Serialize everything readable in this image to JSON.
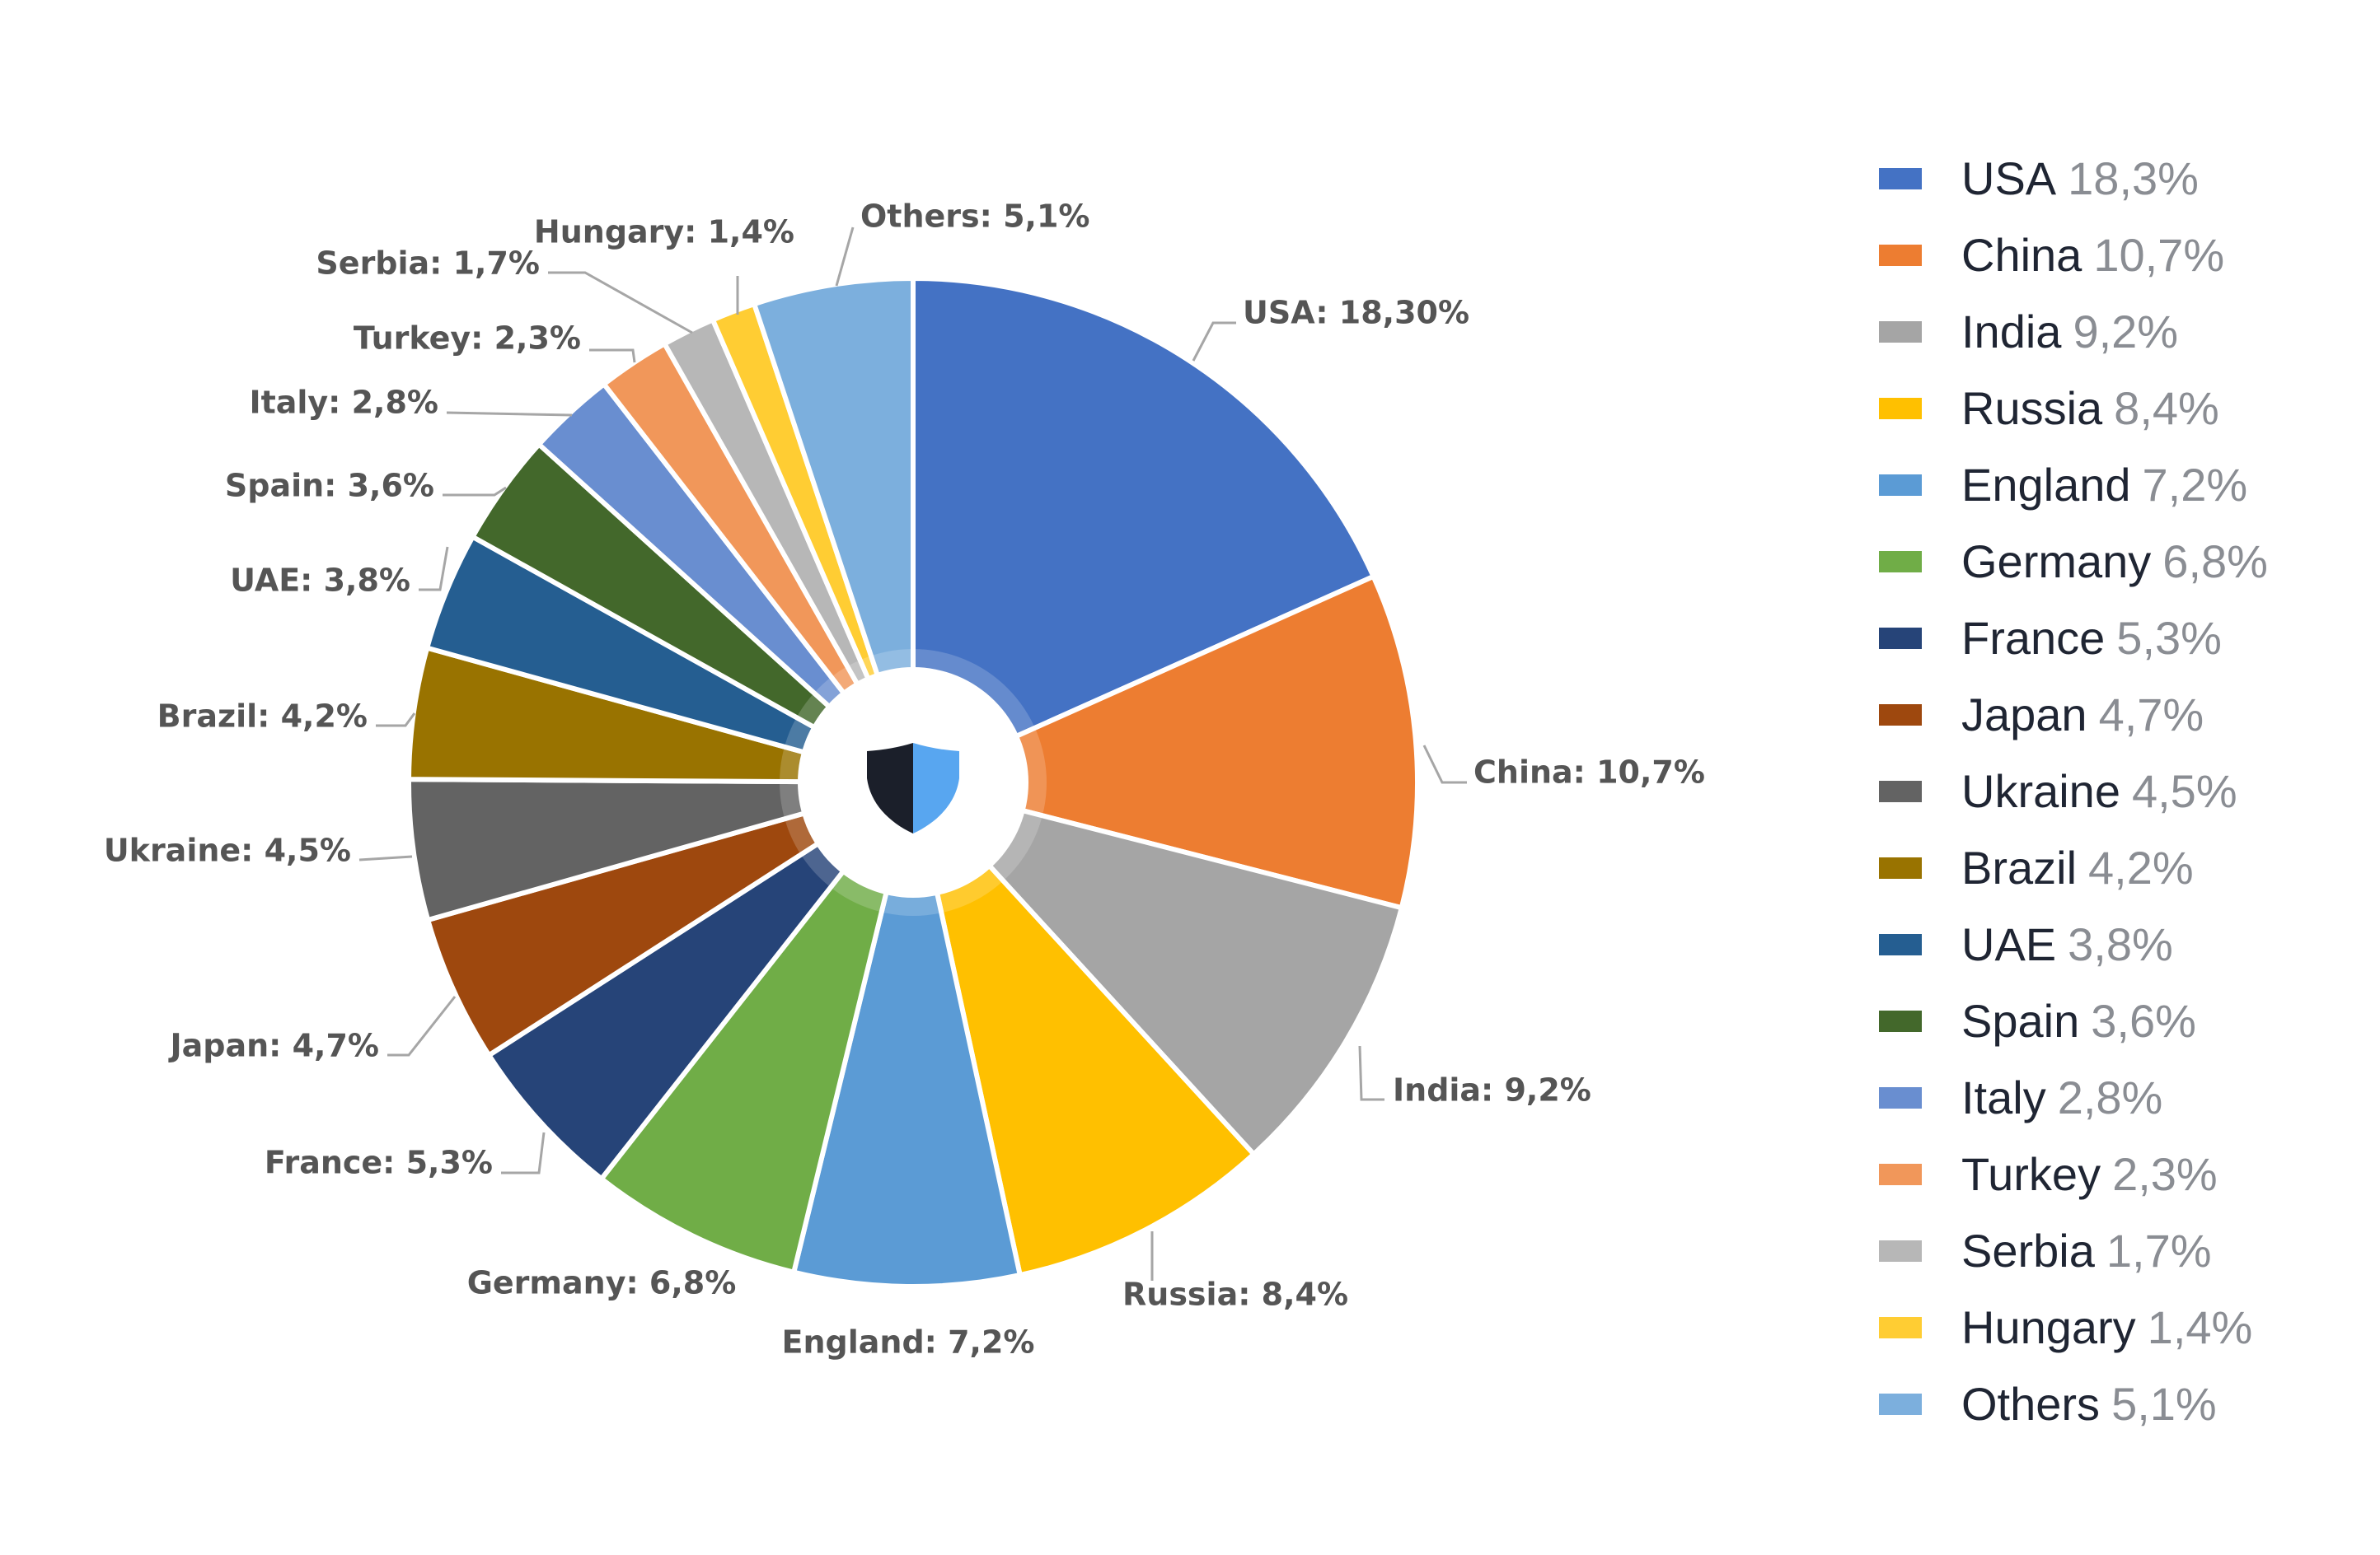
{
  "chart_data": {
    "type": "pie",
    "variant": "donut",
    "start_angle_deg": 0,
    "direction": "clockwise",
    "slices": [
      {
        "name": "USA",
        "value": 18.3,
        "color": "#4472C4",
        "data_label": "USA: 18,30%",
        "legend_value": "18,3%"
      },
      {
        "name": "China",
        "value": 10.7,
        "color": "#ED7D31",
        "data_label": "China: 10,7%",
        "legend_value": "10,7%"
      },
      {
        "name": "India",
        "value": 9.2,
        "color": "#A5A5A5",
        "data_label": "India: 9,2%",
        "legend_value": "9,2%"
      },
      {
        "name": "Russia",
        "value": 8.4,
        "color": "#FFC000",
        "data_label": "Russia: 8,4%",
        "legend_value": "8,4%"
      },
      {
        "name": "England",
        "value": 7.2,
        "color": "#5B9BD5",
        "data_label": "England: 7,2%",
        "legend_value": "7,2%"
      },
      {
        "name": "Germany",
        "value": 6.8,
        "color": "#70AD47",
        "data_label": "Germany: 6,8%",
        "legend_value": "6,8%"
      },
      {
        "name": "France",
        "value": 5.3,
        "color": "#264478",
        "data_label": "France: 5,3%",
        "legend_value": "5,3%"
      },
      {
        "name": "Japan",
        "value": 4.7,
        "color": "#9E480E",
        "data_label": "Japan: 4,7%",
        "legend_value": "4,7%"
      },
      {
        "name": "Ukraine",
        "value": 4.5,
        "color": "#636363",
        "data_label": "Ukraine: 4,5%",
        "legend_value": "4,5%"
      },
      {
        "name": "Brazil",
        "value": 4.2,
        "color": "#997300",
        "data_label": "Brazil: 4,2%",
        "legend_value": "4,2%"
      },
      {
        "name": "UAE",
        "value": 3.8,
        "color": "#255E91",
        "data_label": "UAE: 3,8%",
        "legend_value": "3,8%"
      },
      {
        "name": "Spain",
        "value": 3.6,
        "color": "#43682B",
        "data_label": "Spain: 3,6%",
        "legend_value": "3,6%"
      },
      {
        "name": "Italy",
        "value": 2.8,
        "color": "#698ED0",
        "data_label": "Italy: 2,8%",
        "legend_value": "2,8%"
      },
      {
        "name": "Turkey",
        "value": 2.3,
        "color": "#F1975A",
        "data_label": "Turkey: 2,3%",
        "legend_value": "2,3%"
      },
      {
        "name": "Serbia",
        "value": 1.7,
        "color": "#B7B7B7",
        "data_label": "Serbia: 1,7%",
        "legend_value": "1,7%"
      },
      {
        "name": "Hungary",
        "value": 1.4,
        "color": "#FFCD33",
        "data_label": "Hungary: 1,4%",
        "legend_value": "1,4%"
      },
      {
        "name": "Others",
        "value": 5.1,
        "color": "#7CAFDD",
        "data_label": "Others: 5,1%",
        "legend_value": "5,1%"
      }
    ],
    "legend_position": "right",
    "center_icon": "shield-icon",
    "center_icon_colors": [
      "#1B1F2A",
      "#58A6F0"
    ]
  }
}
